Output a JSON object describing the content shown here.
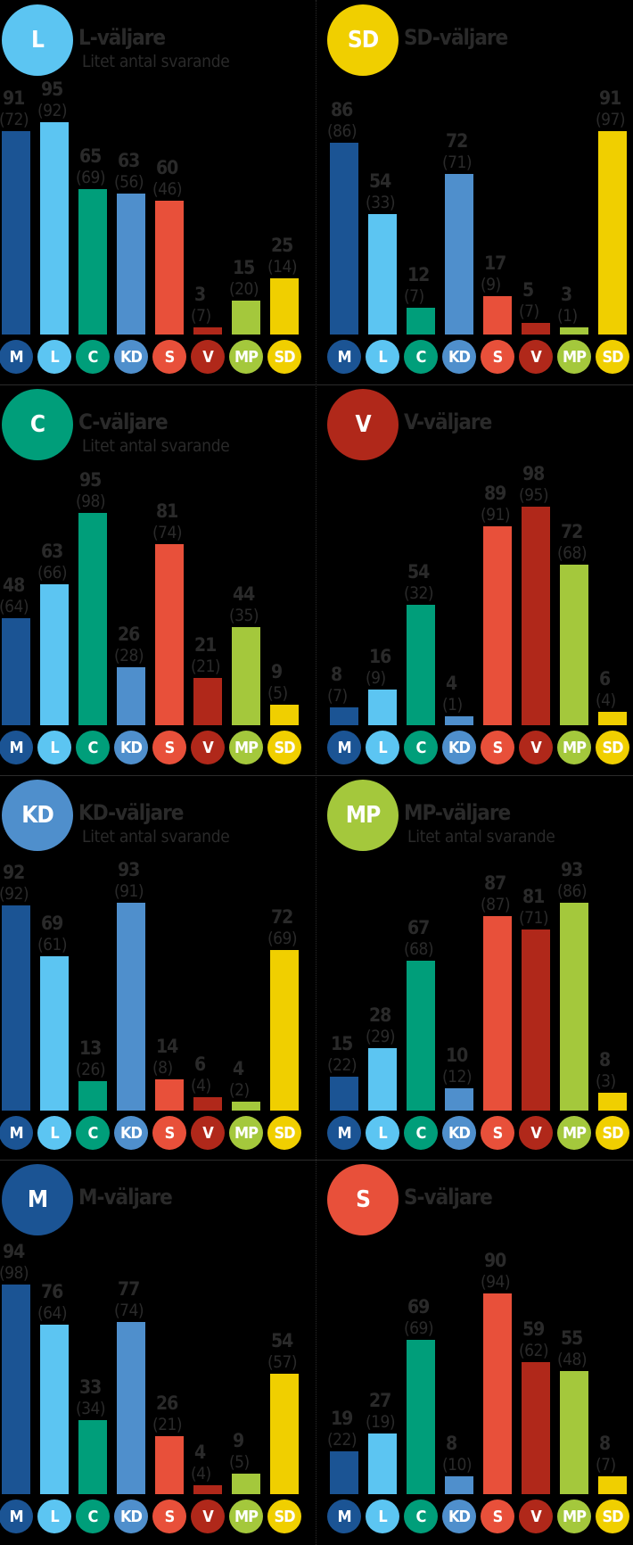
{
  "parties": [
    {
      "key": "M",
      "label": "M",
      "color": "#1b5494"
    },
    {
      "key": "L",
      "label": "L",
      "color": "#5cc5f2"
    },
    {
      "key": "C",
      "label": "C",
      "color": "#009e7a"
    },
    {
      "key": "KD",
      "label": "KD",
      "color": "#4f8fcc"
    },
    {
      "key": "S",
      "label": "S",
      "color": "#e8503a"
    },
    {
      "key": "V",
      "label": "V",
      "color": "#b0281a"
    },
    {
      "key": "MP",
      "label": "MP",
      "color": "#a4c83c"
    },
    {
      "key": "SD",
      "label": "SD",
      "color": "#f0cf00"
    }
  ],
  "panels": [
    {
      "id": "L",
      "circle": "L",
      "color": "#5cc5f2",
      "title": "L-väljare",
      "subtitle": "Litet antal svarande",
      "values": [
        91,
        95,
        65,
        63,
        60,
        3,
        15,
        25
      ],
      "prev": [
        "(72)",
        "(92)",
        "(69)",
        "(56)",
        "(46)",
        "(7)",
        "(20)",
        "(14)"
      ]
    },
    {
      "id": "SD",
      "circle": "SD",
      "color": "#f0cf00",
      "title": "SD-väljare",
      "subtitle": "",
      "values": [
        86,
        54,
        12,
        72,
        17,
        5,
        3,
        91
      ],
      "prev": [
        "(86)",
        "(33)",
        "(7)",
        "(71)",
        "(9)",
        "(7)",
        "(1)",
        "(97)"
      ]
    },
    {
      "id": "C",
      "circle": "C",
      "color": "#009e7a",
      "title": "C-väljare",
      "subtitle": "Litet antal svarande",
      "values": [
        48,
        63,
        95,
        26,
        81,
        21,
        44,
        9
      ],
      "prev": [
        "(64)",
        "(66)",
        "(98)",
        "(28)",
        "(74)",
        "(21)",
        "(35)",
        "(5)"
      ]
    },
    {
      "id": "V",
      "circle": "V",
      "color": "#b0281a",
      "title": "V-väljare",
      "subtitle": "",
      "values": [
        8,
        16,
        54,
        4,
        89,
        98,
        72,
        6
      ],
      "prev": [
        "(7)",
        "(9)",
        "(32)",
        "(1)",
        "(91)",
        "(95)",
        "(68)",
        "(4)"
      ]
    },
    {
      "id": "KD",
      "circle": "KD",
      "color": "#4f8fcc",
      "title": "KD-väljare",
      "subtitle": "Litet antal svarande",
      "values": [
        92,
        69,
        13,
        93,
        14,
        6,
        4,
        72
      ],
      "prev": [
        "(92)",
        "(61)",
        "(26)",
        "(91)",
        "(8)",
        "(4)",
        "(2)",
        "(69)"
      ]
    },
    {
      "id": "MP",
      "circle": "MP",
      "color": "#a4c83c",
      "title": "MP-väljare",
      "subtitle": "Litet antal svarande",
      "values": [
        15,
        28,
        67,
        10,
        87,
        81,
        93,
        8
      ],
      "prev": [
        "(22)",
        "(29)",
        "(68)",
        "(12)",
        "(87)",
        "(71)",
        "(86)",
        "(3)"
      ]
    },
    {
      "id": "M",
      "circle": "M",
      "color": "#1b5494",
      "title": "M-väljare",
      "subtitle": "",
      "values": [
        94,
        76,
        33,
        77,
        26,
        4,
        9,
        54
      ],
      "prev": [
        "(98)",
        "(64)",
        "(34)",
        "(74)",
        "(21)",
        "(4)",
        "(5)",
        "(57)"
      ]
    },
    {
      "id": "S",
      "circle": "S",
      "color": "#e8503a",
      "title": "S-väljare",
      "subtitle": "",
      "values": [
        19,
        27,
        69,
        8,
        90,
        59,
        55,
        8
      ],
      "prev": [
        "(22)",
        "(19)",
        "(69)",
        "(10)",
        "(94)",
        "(62)",
        "(48)",
        "(7)"
      ]
    }
  ],
  "chart_data": [
    {
      "type": "bar",
      "title": "L-väljare",
      "subtitle": "Litet antal svarande",
      "categories": [
        "M",
        "L",
        "C",
        "KD",
        "S",
        "V",
        "MP",
        "SD"
      ],
      "series": [
        {
          "name": "current",
          "values": [
            91,
            95,
            65,
            63,
            60,
            3,
            15,
            25
          ]
        },
        {
          "name": "previous",
          "values": [
            72,
            92,
            69,
            56,
            46,
            7,
            20,
            14
          ]
        }
      ],
      "ylim": [
        0,
        100
      ],
      "grid": false
    },
    {
      "type": "bar",
      "title": "SD-väljare",
      "categories": [
        "M",
        "L",
        "C",
        "KD",
        "S",
        "V",
        "MP",
        "SD"
      ],
      "series": [
        {
          "name": "current",
          "values": [
            86,
            54,
            12,
            72,
            17,
            5,
            3,
            91
          ]
        },
        {
          "name": "previous",
          "values": [
            86,
            33,
            7,
            71,
            9,
            7,
            1,
            97
          ]
        }
      ],
      "ylim": [
        0,
        100
      ],
      "grid": false
    },
    {
      "type": "bar",
      "title": "C-väljare",
      "subtitle": "Litet antal svarande",
      "categories": [
        "M",
        "L",
        "C",
        "KD",
        "S",
        "V",
        "MP",
        "SD"
      ],
      "series": [
        {
          "name": "current",
          "values": [
            48,
            63,
            95,
            26,
            81,
            21,
            44,
            9
          ]
        },
        {
          "name": "previous",
          "values": [
            64,
            66,
            98,
            28,
            74,
            21,
            35,
            5
          ]
        }
      ],
      "ylim": [
        0,
        100
      ],
      "grid": false
    },
    {
      "type": "bar",
      "title": "V-väljare",
      "categories": [
        "M",
        "L",
        "C",
        "KD",
        "S",
        "V",
        "MP",
        "SD"
      ],
      "series": [
        {
          "name": "current",
          "values": [
            8,
            16,
            54,
            4,
            89,
            98,
            72,
            6
          ]
        },
        {
          "name": "previous",
          "values": [
            7,
            9,
            32,
            1,
            91,
            95,
            68,
            4
          ]
        }
      ],
      "ylim": [
        0,
        100
      ],
      "grid": false
    },
    {
      "type": "bar",
      "title": "KD-väljare",
      "subtitle": "Litet antal svarande",
      "categories": [
        "M",
        "L",
        "C",
        "KD",
        "S",
        "V",
        "MP",
        "SD"
      ],
      "series": [
        {
          "name": "current",
          "values": [
            92,
            69,
            13,
            93,
            14,
            6,
            4,
            72
          ]
        },
        {
          "name": "previous",
          "values": [
            92,
            61,
            26,
            91,
            8,
            4,
            2,
            69
          ]
        }
      ],
      "ylim": [
        0,
        100
      ],
      "grid": false
    },
    {
      "type": "bar",
      "title": "MP-väljare",
      "subtitle": "Litet antal svarande",
      "categories": [
        "M",
        "L",
        "C",
        "KD",
        "S",
        "V",
        "MP",
        "SD"
      ],
      "series": [
        {
          "name": "current",
          "values": [
            15,
            28,
            67,
            10,
            87,
            81,
            93,
            8
          ]
        },
        {
          "name": "previous",
          "values": [
            22,
            29,
            68,
            12,
            87,
            71,
            86,
            3
          ]
        }
      ],
      "ylim": [
        0,
        100
      ],
      "grid": false
    },
    {
      "type": "bar",
      "title": "M-väljare",
      "categories": [
        "M",
        "L",
        "C",
        "KD",
        "S",
        "V",
        "MP",
        "SD"
      ],
      "series": [
        {
          "name": "current",
          "values": [
            94,
            76,
            33,
            77,
            26,
            4,
            9,
            54
          ]
        },
        {
          "name": "previous",
          "values": [
            98,
            64,
            34,
            74,
            21,
            4,
            5,
            57
          ]
        }
      ],
      "ylim": [
        0,
        100
      ],
      "grid": false
    },
    {
      "type": "bar",
      "title": "S-väljare",
      "categories": [
        "M",
        "L",
        "C",
        "KD",
        "S",
        "V",
        "MP",
        "SD"
      ],
      "series": [
        {
          "name": "current",
          "values": [
            19,
            27,
            69,
            8,
            90,
            59,
            55,
            8
          ]
        },
        {
          "name": "previous",
          "values": [
            22,
            19,
            69,
            10,
            94,
            62,
            48,
            7
          ]
        }
      ],
      "ylim": [
        0,
        100
      ],
      "grid": false
    }
  ]
}
